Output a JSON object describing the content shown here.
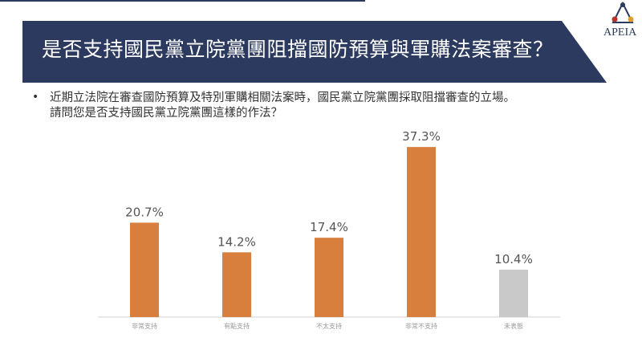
{
  "header": {
    "title": "是否支持國民黨立院黨團阻擋國防預算與軍購法案審查？",
    "logo_text": "APEIA"
  },
  "question": {
    "line1": "近期立法院在審查國防預算及特別軍購相關法案時，國民黨立院黨團採取阻擋審查的立場。",
    "line2": "請問您是否支持國民黨立院黨團這樣的作法？"
  },
  "colors": {
    "banner": "#2b3a5e",
    "bar": "#d87f3e",
    "bar_neutral": "#c9c9c9"
  },
  "chart_data": {
    "type": "bar",
    "title": "",
    "categories": [
      "非常支持",
      "有點支持",
      "不太支持",
      "非常不支持",
      "未表態"
    ],
    "values": [
      20.7,
      14.2,
      17.4,
      37.3,
      10.4
    ],
    "labels": [
      "20.7%",
      "14.2%",
      "17.4%",
      "37.3%",
      "10.4%"
    ],
    "ylim": [
      0,
      40
    ],
    "xlabel": "",
    "ylabel": "",
    "grid": false
  }
}
